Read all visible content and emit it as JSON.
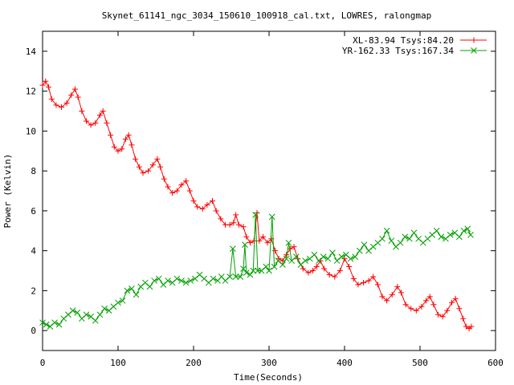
{
  "chart_data": {
    "type": "line",
    "title": "Skynet_61141_ngc_3034_150610_100918_cal.txt, LOWRES, ralongmap",
    "xlabel": "Time(Seconds)",
    "ylabel": "Power (Kelvin)",
    "xlim": [
      0,
      600
    ],
    "ylim": [
      -1,
      15
    ],
    "xticks": [
      0,
      100,
      200,
      300,
      400,
      500,
      600
    ],
    "yticks": [
      0,
      2,
      4,
      6,
      8,
      10,
      12,
      14
    ],
    "legend_position": "top-right",
    "grid": false,
    "series": [
      {
        "name": "XL-83.94 Tsys:84.20",
        "color": "#ff0000",
        "marker": "plus",
        "points": [
          [
            0,
            12.3
          ],
          [
            4,
            12.5
          ],
          [
            8,
            12.2
          ],
          [
            12,
            11.6
          ],
          [
            18,
            11.3
          ],
          [
            25,
            11.2
          ],
          [
            32,
            11.4
          ],
          [
            38,
            11.8
          ],
          [
            43,
            12.1
          ],
          [
            47,
            11.7
          ],
          [
            52,
            11.0
          ],
          [
            58,
            10.5
          ],
          [
            64,
            10.3
          ],
          [
            70,
            10.4
          ],
          [
            76,
            10.8
          ],
          [
            80,
            11.0
          ],
          [
            85,
            10.4
          ],
          [
            90,
            9.8
          ],
          [
            95,
            9.2
          ],
          [
            100,
            9.0
          ],
          [
            105,
            9.1
          ],
          [
            110,
            9.6
          ],
          [
            114,
            9.8
          ],
          [
            118,
            9.3
          ],
          [
            123,
            8.6
          ],
          [
            128,
            8.2
          ],
          [
            133,
            7.9
          ],
          [
            140,
            8.0
          ],
          [
            146,
            8.3
          ],
          [
            152,
            8.6
          ],
          [
            156,
            8.2
          ],
          [
            161,
            7.6
          ],
          [
            166,
            7.2
          ],
          [
            172,
            6.9
          ],
          [
            178,
            7.0
          ],
          [
            184,
            7.3
          ],
          [
            190,
            7.5
          ],
          [
            195,
            7.0
          ],
          [
            200,
            6.5
          ],
          [
            205,
            6.2
          ],
          [
            212,
            6.1
          ],
          [
            218,
            6.3
          ],
          [
            225,
            6.5
          ],
          [
            230,
            6.0
          ],
          [
            236,
            5.6
          ],
          [
            242,
            5.3
          ],
          [
            248,
            5.3
          ],
          [
            253,
            5.4
          ],
          [
            256,
            5.8
          ],
          [
            260,
            5.3
          ],
          [
            266,
            5.2
          ],
          [
            270,
            4.7
          ],
          [
            275,
            4.4
          ],
          [
            280,
            4.5
          ],
          [
            284,
            5.9
          ],
          [
            287,
            4.5
          ],
          [
            292,
            4.7
          ],
          [
            298,
            4.4
          ],
          [
            303,
            4.6
          ],
          [
            308,
            4.0
          ],
          [
            313,
            3.6
          ],
          [
            318,
            3.5
          ],
          [
            323,
            3.8
          ],
          [
            328,
            4.1
          ],
          [
            333,
            4.2
          ],
          [
            338,
            3.6
          ],
          [
            345,
            3.1
          ],
          [
            352,
            2.9
          ],
          [
            358,
            3.0
          ],
          [
            363,
            3.2
          ],
          [
            368,
            3.5
          ],
          [
            373,
            3.1
          ],
          [
            380,
            2.8
          ],
          [
            387,
            2.7
          ],
          [
            394,
            3.0
          ],
          [
            400,
            3.6
          ],
          [
            406,
            3.2
          ],
          [
            412,
            2.6
          ],
          [
            418,
            2.3
          ],
          [
            425,
            2.4
          ],
          [
            432,
            2.5
          ],
          [
            438,
            2.7
          ],
          [
            444,
            2.3
          ],
          [
            450,
            1.7
          ],
          [
            456,
            1.5
          ],
          [
            463,
            1.8
          ],
          [
            470,
            2.2
          ],
          [
            475,
            1.9
          ],
          [
            481,
            1.3
          ],
          [
            488,
            1.1
          ],
          [
            495,
            1.0
          ],
          [
            502,
            1.2
          ],
          [
            508,
            1.5
          ],
          [
            513,
            1.7
          ],
          [
            518,
            1.3
          ],
          [
            524,
            0.8
          ],
          [
            530,
            0.7
          ],
          [
            536,
            1.0
          ],
          [
            542,
            1.4
          ],
          [
            547,
            1.6
          ],
          [
            552,
            1.1
          ],
          [
            557,
            0.6
          ],
          [
            561,
            0.2
          ],
          [
            565,
            0.1
          ],
          [
            568,
            0.2
          ]
        ]
      },
      {
        "name": "YR-162.33 Tsys:167.34",
        "color": "#00a000",
        "marker": "cross",
        "points": [
          [
            0,
            0.4
          ],
          [
            5,
            0.3
          ],
          [
            10,
            0.2
          ],
          [
            16,
            0.4
          ],
          [
            22,
            0.3
          ],
          [
            28,
            0.6
          ],
          [
            34,
            0.8
          ],
          [
            40,
            1.0
          ],
          [
            46,
            0.9
          ],
          [
            52,
            0.6
          ],
          [
            58,
            0.8
          ],
          [
            64,
            0.7
          ],
          [
            70,
            0.5
          ],
          [
            76,
            0.8
          ],
          [
            82,
            1.1
          ],
          [
            88,
            1.0
          ],
          [
            94,
            1.2
          ],
          [
            100,
            1.4
          ],
          [
            106,
            1.5
          ],
          [
            112,
            2.0
          ],
          [
            118,
            2.1
          ],
          [
            124,
            1.8
          ],
          [
            130,
            2.2
          ],
          [
            136,
            2.4
          ],
          [
            142,
            2.2
          ],
          [
            148,
            2.5
          ],
          [
            154,
            2.6
          ],
          [
            160,
            2.3
          ],
          [
            166,
            2.5
          ],
          [
            172,
            2.4
          ],
          [
            178,
            2.6
          ],
          [
            184,
            2.5
          ],
          [
            190,
            2.4
          ],
          [
            196,
            2.5
          ],
          [
            202,
            2.6
          ],
          [
            208,
            2.8
          ],
          [
            214,
            2.6
          ],
          [
            220,
            2.4
          ],
          [
            226,
            2.6
          ],
          [
            232,
            2.5
          ],
          [
            237,
            2.7
          ],
          [
            242,
            2.5
          ],
          [
            248,
            2.7
          ],
          [
            252,
            4.1
          ],
          [
            256,
            2.7
          ],
          [
            262,
            2.7
          ],
          [
            266,
            3.1
          ],
          [
            268,
            4.3
          ],
          [
            270,
            2.9
          ],
          [
            275,
            2.8
          ],
          [
            279,
            3.0
          ],
          [
            282,
            5.8
          ],
          [
            285,
            3.0
          ],
          [
            290,
            3.0
          ],
          [
            296,
            3.2
          ],
          [
            300,
            3.0
          ],
          [
            304,
            5.7
          ],
          [
            307,
            3.2
          ],
          [
            312,
            3.5
          ],
          [
            318,
            3.3
          ],
          [
            323,
            3.6
          ],
          [
            326,
            4.4
          ],
          [
            330,
            3.5
          ],
          [
            336,
            3.7
          ],
          [
            342,
            3.3
          ],
          [
            348,
            3.5
          ],
          [
            354,
            3.6
          ],
          [
            360,
            3.8
          ],
          [
            366,
            3.5
          ],
          [
            372,
            3.7
          ],
          [
            378,
            3.6
          ],
          [
            384,
            3.9
          ],
          [
            390,
            3.5
          ],
          [
            396,
            3.7
          ],
          [
            402,
            3.8
          ],
          [
            408,
            3.6
          ],
          [
            414,
            3.7
          ],
          [
            420,
            4.0
          ],
          [
            426,
            4.3
          ],
          [
            432,
            4.0
          ],
          [
            438,
            4.2
          ],
          [
            444,
            4.4
          ],
          [
            450,
            4.6
          ],
          [
            456,
            5.0
          ],
          [
            462,
            4.5
          ],
          [
            468,
            4.2
          ],
          [
            474,
            4.4
          ],
          [
            480,
            4.7
          ],
          [
            486,
            4.6
          ],
          [
            492,
            4.9
          ],
          [
            498,
            4.6
          ],
          [
            504,
            4.4
          ],
          [
            510,
            4.6
          ],
          [
            516,
            4.8
          ],
          [
            522,
            5.0
          ],
          [
            528,
            4.7
          ],
          [
            534,
            4.6
          ],
          [
            540,
            4.8
          ],
          [
            546,
            4.9
          ],
          [
            552,
            4.7
          ],
          [
            558,
            5.0
          ],
          [
            563,
            5.1
          ],
          [
            567,
            4.8
          ]
        ]
      }
    ]
  }
}
